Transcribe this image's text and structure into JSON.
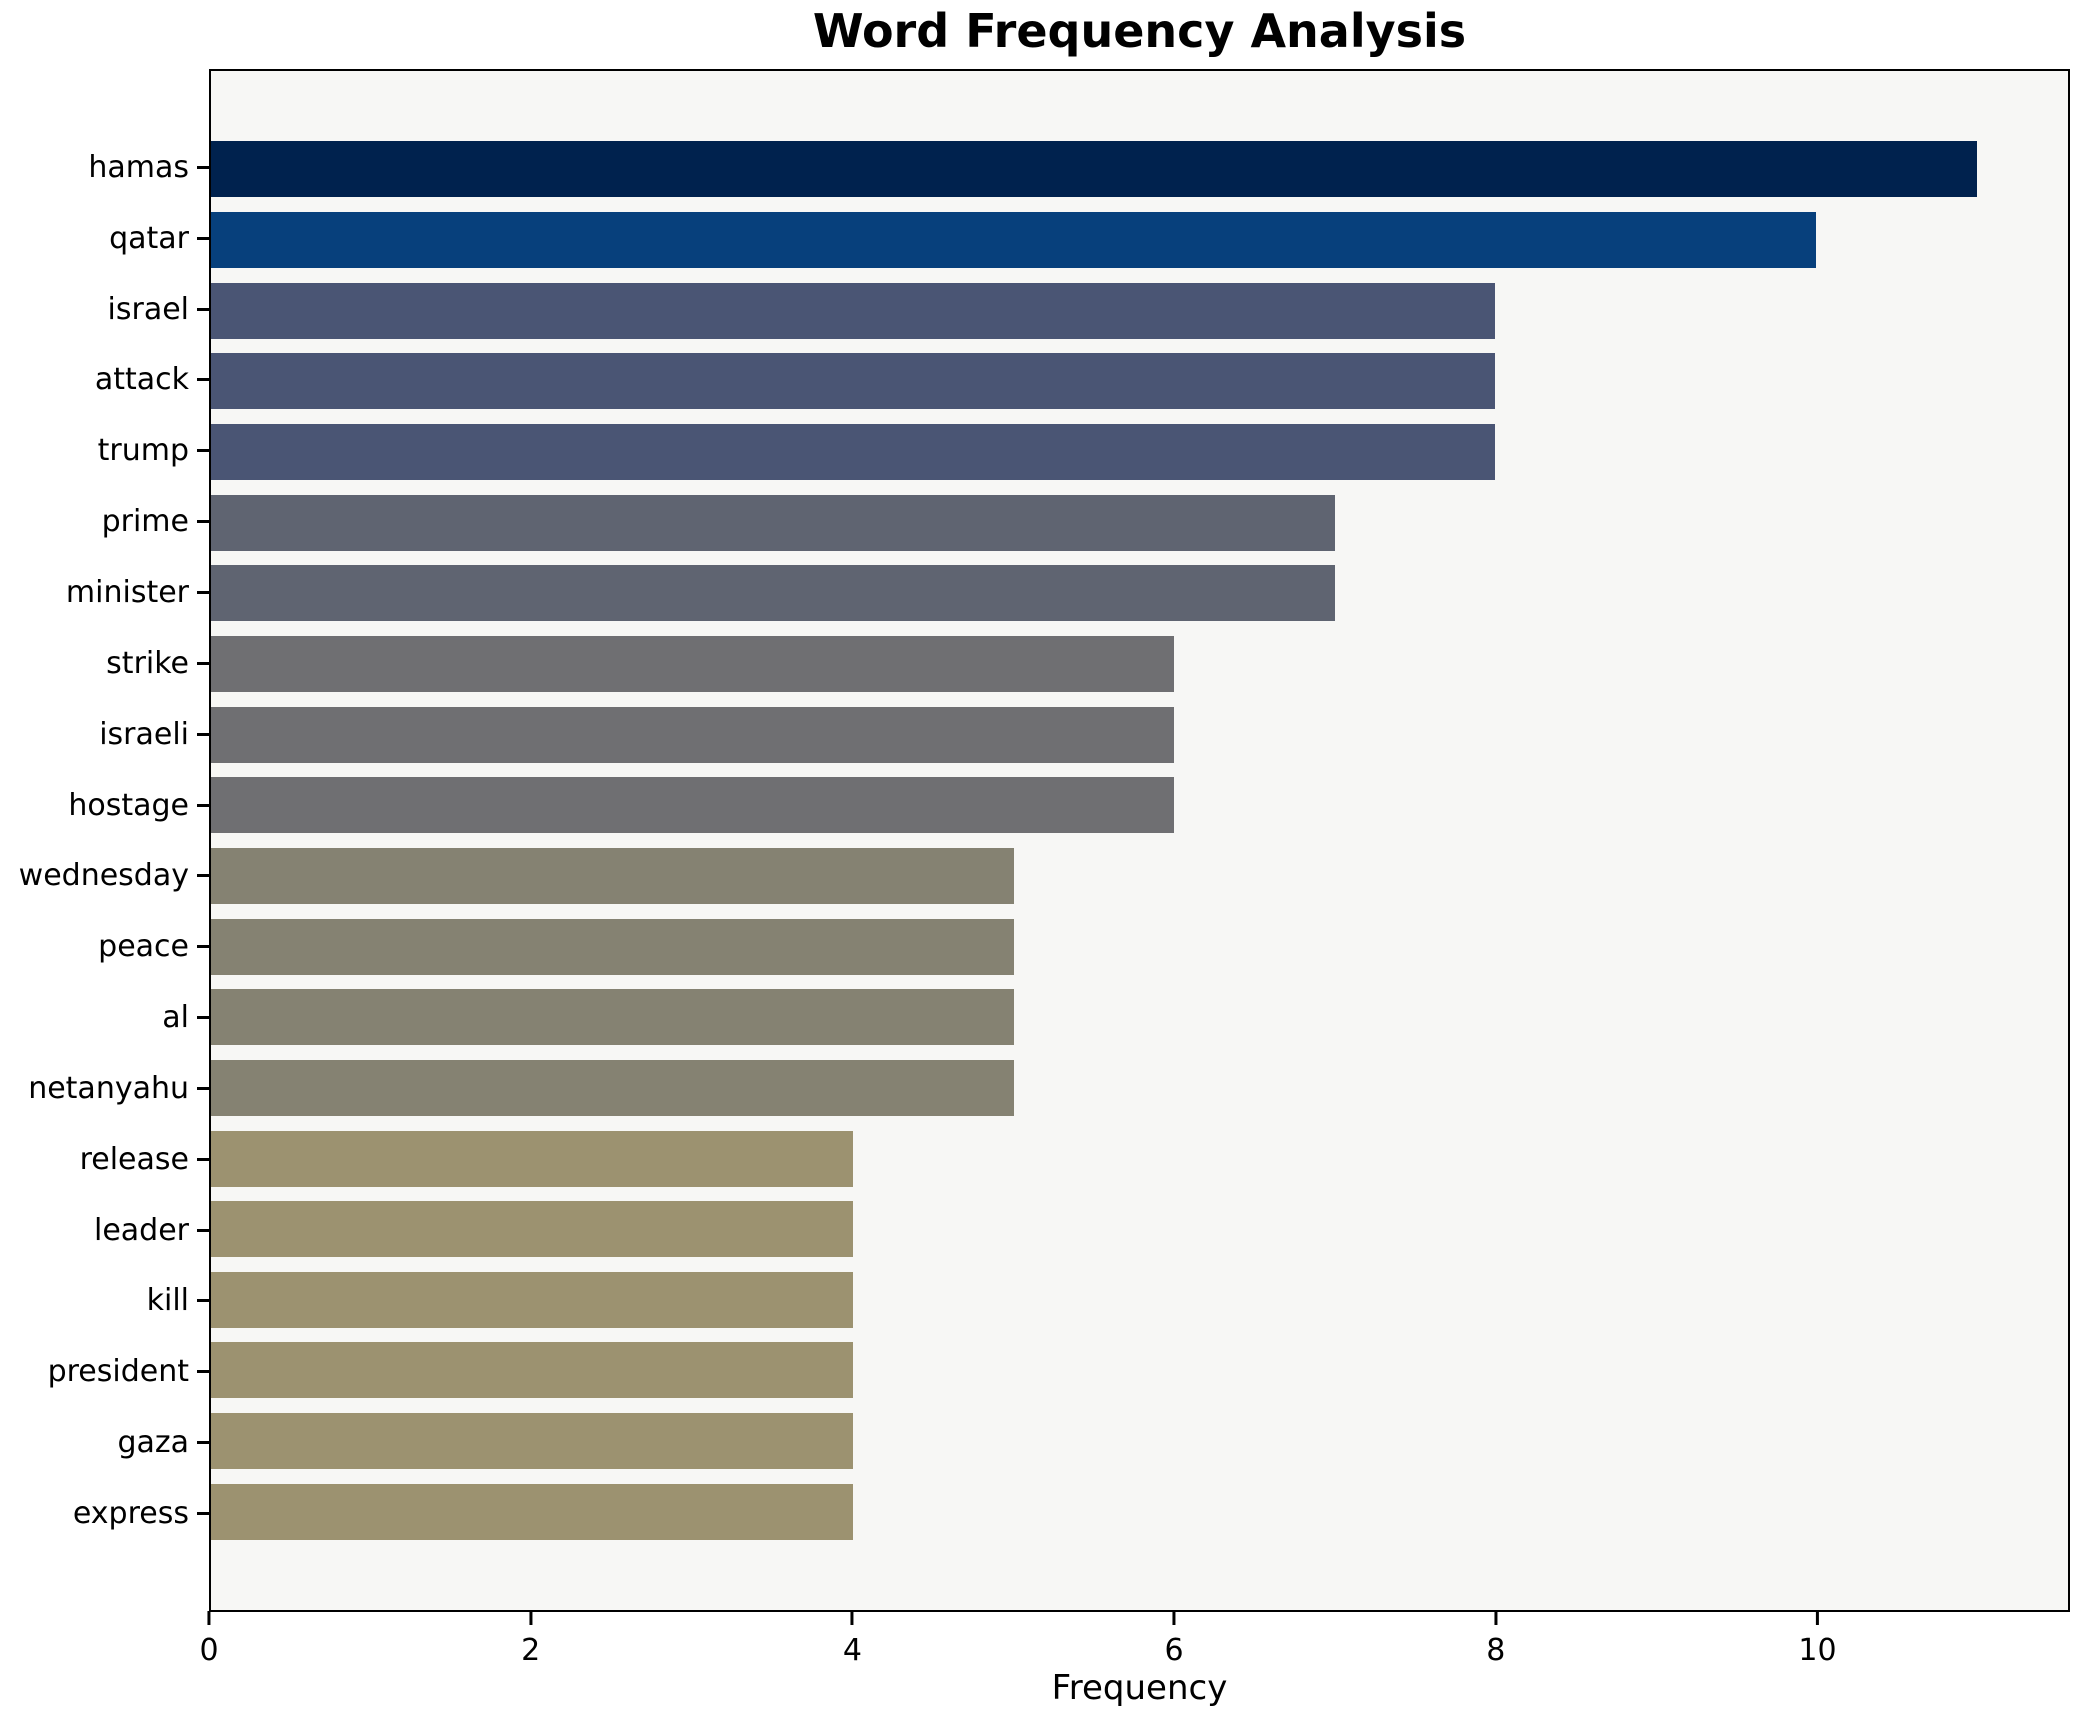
{
  "chart": {
    "title": "Word Frequency Analysis",
    "xlabel": "Frequency"
  },
  "chart_data": {
    "type": "bar",
    "orientation": "horizontal",
    "title": "Word Frequency Analysis",
    "xlabel": "Frequency",
    "ylabel": "",
    "categories": [
      "hamas",
      "qatar",
      "israel",
      "attack",
      "trump",
      "prime",
      "minister",
      "strike",
      "israeli",
      "hostage",
      "wednesday",
      "peace",
      "al",
      "netanyahu",
      "release",
      "leader",
      "kill",
      "president",
      "gaza",
      "express"
    ],
    "values": [
      11,
      10,
      8,
      8,
      8,
      7,
      7,
      6,
      6,
      6,
      5,
      5,
      5,
      5,
      4,
      4,
      4,
      4,
      4,
      4
    ],
    "bar_colors": [
      "#00224e",
      "#07407c",
      "#4a5574",
      "#4a5574",
      "#4a5574",
      "#5f6471",
      "#5f6471",
      "#6f6f72",
      "#6f6f72",
      "#6f6f72",
      "#858272",
      "#858272",
      "#858272",
      "#858272",
      "#9c9270",
      "#9c9270",
      "#9c9270",
      "#9c9270",
      "#9c9270",
      "#9c9270"
    ],
    "xlim": [
      0,
      11.57
    ],
    "xticks": [
      0,
      2,
      4,
      6,
      8,
      10
    ],
    "grid": false,
    "legend": null,
    "plot_background": "#f7f7f5",
    "figure_background": "#ffffff"
  }
}
